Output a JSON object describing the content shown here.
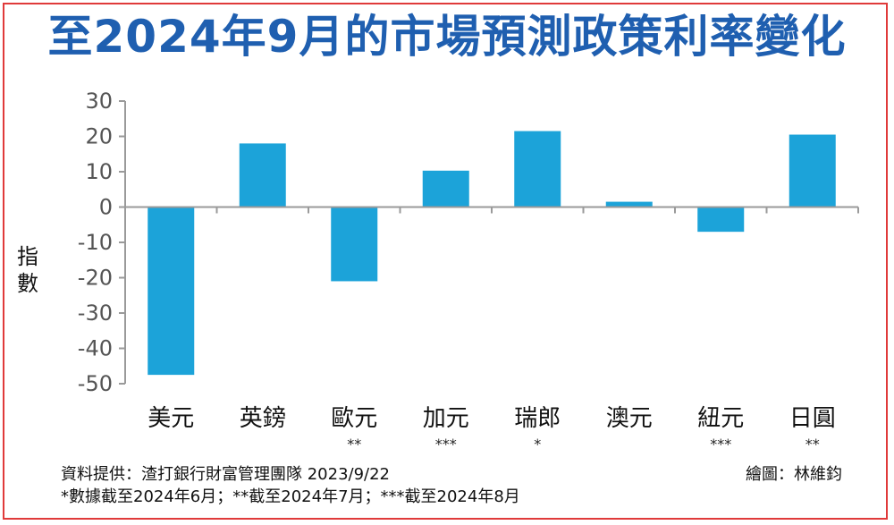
{
  "chart_data": {
    "type": "bar",
    "title": "至2024年9月的市場預測政策利率變化",
    "ylabel": "指數",
    "xlabel": "",
    "ylim": [
      -50,
      30
    ],
    "yticks": [
      30,
      20,
      10,
      0,
      -10,
      -20,
      -30,
      -40,
      -50
    ],
    "categories": [
      "美元",
      "英鎊",
      "歐元",
      "加元",
      "瑞郎",
      "澳元",
      "紐元",
      "日圓"
    ],
    "category_notes": [
      "",
      "",
      "**",
      "***",
      "*",
      "",
      "***",
      "**"
    ],
    "values": [
      -47.5,
      18,
      -21,
      10.3,
      21.5,
      1.5,
      -7,
      20.5
    ],
    "bar_color": "#1ca3d9",
    "grid": false
  },
  "footer": {
    "source": "資料提供：渣打銀行財富管理團隊  2023/9/22",
    "credit": "繪圖：林維鈞",
    "note": "*數據截至2024年6月；**截至2024年7月；***截至2024年8月"
  }
}
